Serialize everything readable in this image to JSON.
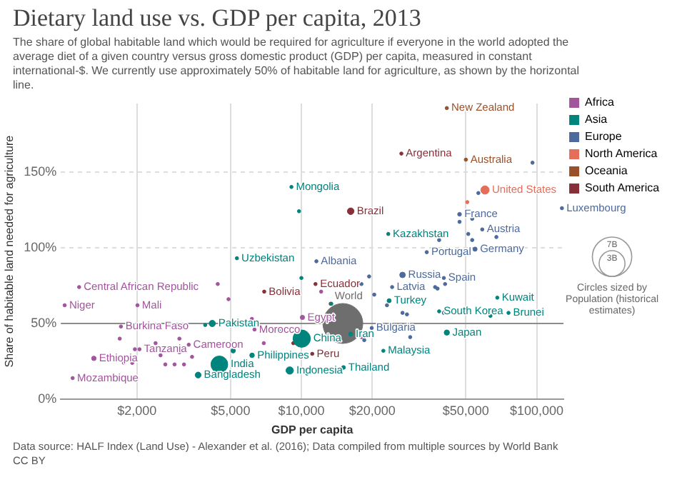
{
  "chart_data": {
    "type": "bubble",
    "title": "Dietary land use vs. GDP per capita, 2013",
    "subtitle": "The share of global habitable land which would be required for agriculture if everyone in the world adopted the average diet of a given country versus gross domestic product (GDP) per capita, measured in constant international-$. We currently use approximately 50% of habitable land for agriculture, as shown by the horizontal line.",
    "xlabel": "GDP per capita",
    "ylabel": "Share of habitable land needed for agriculture",
    "log": "x",
    "xlim": [
      950,
      130000
    ],
    "ylim": [
      0,
      195
    ],
    "xticks": [
      {
        "value": 2000,
        "label": "$2,000"
      },
      {
        "value": 5000,
        "label": "$5,000"
      },
      {
        "value": 10000,
        "label": "$10,000"
      },
      {
        "value": 20000,
        "label": "$20,000"
      },
      {
        "value": 50000,
        "label": "$50,000"
      },
      {
        "value": 100000,
        "label": "$100,000"
      }
    ],
    "yticks": [
      {
        "value": 0,
        "label": "0%"
      },
      {
        "value": 50,
        "label": "50%"
      },
      {
        "value": 100,
        "label": "100%"
      },
      {
        "value": 150,
        "label": "150%"
      }
    ],
    "grid": true,
    "legend": "top right",
    "size_legend": [
      {
        "value": 7,
        "label": "7B"
      },
      {
        "value": 3,
        "label": "3B"
      }
    ],
    "ref_lines": [
      {
        "axis": "y",
        "value": 50,
        "color": "#8c8c8c"
      }
    ],
    "series": [
      {
        "name": "Africa",
        "color": "#a2559c",
        "x": [
          1136,
          986,
          2010,
          1710,
          6320,
          10100,
          3320,
          1312,
          2050,
          1066,
          4410,
          4900,
          1690,
          1960,
          1760,
          1910,
          1490,
          2400,
          2520,
          2640,
          2890,
          3030,
          3030,
          3170,
          3430,
          6160,
          6920,
          12130,
          18000
        ],
        "values": [
          74,
          62,
          62,
          48,
          46,
          54,
          36,
          27,
          33,
          14,
          76,
          66,
          40,
          33,
          24,
          24,
          27,
          37,
          29,
          23,
          23,
          31,
          40,
          23,
          28,
          53,
          37,
          71,
          41
        ],
        "sizes": [
          0.05,
          0.05,
          0.05,
          0.05,
          0.05,
          0.087,
          0.05,
          0.094,
          0.05,
          0.05,
          0.05,
          0.05,
          0.05,
          0.05,
          0.05,
          0.05,
          0.05,
          0.05,
          0.05,
          0.05,
          0.05,
          0.05,
          0.05,
          0.05,
          0.05,
          0.05,
          0.05,
          0.05,
          0.05
        ]
      },
      {
        "name": "Asia",
        "color": "#00847e",
        "x": [
          9070,
          5320,
          4180,
          10030,
          4480,
          3640,
          6170,
          8920,
          23400,
          23600,
          68000,
          38500,
          75900,
          16200,
          41500,
          22300,
          15100,
          9770,
          10000,
          3900,
          5130,
          8040,
          10560,
          13400,
          63600
        ],
        "values": [
          140,
          93,
          50,
          40,
          23,
          16,
          29,
          19,
          109,
          65,
          67,
          58,
          57,
          43,
          44,
          32,
          21,
          124,
          80,
          49,
          32,
          45,
          17,
          63,
          55
        ],
        "sizes": [
          0.05,
          0.05,
          0.18,
          1.36,
          1.28,
          0.157,
          0.098,
          0.25,
          0.05,
          0.076,
          0.05,
          0.05,
          0.05,
          0.077,
          0.127,
          0.05,
          0.067,
          0.05,
          0.05,
          0.05,
          0.09,
          0.05,
          0.05,
          0.05,
          0.05
        ]
      },
      {
        "name": "Europe",
        "color": "#4c6a9c",
        "x": [
          11580,
          47000,
          128000,
          58700,
          34100,
          54700,
          26900,
          40300,
          24300,
          19900,
          96000,
          56500,
          38500,
          47000,
          53200,
          51200,
          53200,
          67400,
          74000,
          19400,
          18000,
          30000,
          37000,
          40800,
          37900,
          20400,
          23100,
          26900,
          28100,
          40400,
          18500,
          29000
        ],
        "values": [
          91,
          122,
          126,
          112,
          97,
          99,
          82,
          80,
          74,
          47,
          156,
          136,
          105,
          117,
          119,
          109,
          105,
          107,
          111,
          81,
          76,
          74,
          74,
          76,
          73,
          69,
          62,
          57,
          56,
          57,
          39,
          41
        ],
        "sizes": [
          0.05,
          0.066,
          0.05,
          0.05,
          0.05,
          0.081,
          0.143,
          0.05,
          0.05,
          0.05,
          0.05,
          0.05,
          0.05,
          0.05,
          0.05,
          0.05,
          0.05,
          0.05,
          0.05,
          0.05,
          0.05,
          0.05,
          0.05,
          0.05,
          0.05,
          0.05,
          0.05,
          0.05,
          0.05,
          0.06,
          0.05,
          0.05
        ]
      },
      {
        "name": "North America",
        "color": "#e56e5a",
        "x": [
          60300,
          50700,
          14800,
          17000
        ],
        "values": [
          138,
          130,
          69,
          67
        ],
        "sizes": [
          0.316,
          0.05,
          0.05,
          0.05
        ]
      },
      {
        "name": "Oceania",
        "color": "#9a5129",
        "x": [
          41500,
          50000
        ],
        "values": [
          192,
          158
        ],
        "sizes": [
          0.05,
          0.05
        ]
      },
      {
        "name": "South America",
        "color": "#883039",
        "x": [
          26600,
          16200,
          6950,
          11480,
          11120,
          13320,
          9240
        ],
        "values": [
          162,
          124,
          71,
          76,
          30,
          63,
          37
        ],
        "sizes": [
          0.05,
          0.2,
          0.05,
          0.05,
          0.05,
          0.05,
          0.05
        ]
      },
      {
        "color": "#6e6e6e",
        "x": [
          15000
        ],
        "values": [
          50
        ],
        "sizes": [
          7.2
        ]
      }
    ],
    "annotations": [
      {
        "text": "Central African Republic",
        "x": 1136,
        "y": 74
      },
      {
        "text": "Niger",
        "x": 986,
        "y": 62
      },
      {
        "text": "Mali",
        "x": 2010,
        "y": 62
      },
      {
        "text": "Burkina Faso",
        "x": 1710,
        "y": 48
      },
      {
        "text": "Morocco",
        "x": 6320,
        "y": 46
      },
      {
        "text": "Egypt",
        "x": 10100,
        "y": 54
      },
      {
        "text": "Cameroon",
        "x": 3320,
        "y": 36
      },
      {
        "text": "Ethiopia",
        "x": 1312,
        "y": 27
      },
      {
        "text": "Tanzania",
        "x": 2050,
        "y": 33
      },
      {
        "text": "Mozambique",
        "x": 1066,
        "y": 14
      },
      {
        "text": "Mongolia",
        "x": 9070,
        "y": 140
      },
      {
        "text": "Uzbekistan",
        "x": 5320,
        "y": 93
      },
      {
        "text": "Pakistan",
        "x": 4180,
        "y": 50
      },
      {
        "text": "China",
        "x": 10030,
        "y": 40
      },
      {
        "text": "India",
        "x": 4480,
        "y": 23
      },
      {
        "text": "Bangladesh",
        "x": 3640,
        "y": 16
      },
      {
        "text": "Philippines",
        "x": 6170,
        "y": 29
      },
      {
        "text": "Indonesia",
        "x": 8920,
        "y": 19
      },
      {
        "text": "Kazakhstan",
        "x": 23400,
        "y": 109
      },
      {
        "text": "Turkey",
        "x": 23600,
        "y": 65
      },
      {
        "text": "Kuwait",
        "x": 68000,
        "y": 67
      },
      {
        "text": "South Korea",
        "x": 38500,
        "y": 58
      },
      {
        "text": "Brunei",
        "x": 75900,
        "y": 57
      },
      {
        "text": "Iran",
        "x": 16200,
        "y": 43
      },
      {
        "text": "Japan",
        "x": 41500,
        "y": 44
      },
      {
        "text": "Malaysia",
        "x": 22300,
        "y": 32
      },
      {
        "text": "Thailand",
        "x": 15100,
        "y": 21
      },
      {
        "text": "Albania",
        "x": 11580,
        "y": 91
      },
      {
        "text": "France",
        "x": 47000,
        "y": 122
      },
      {
        "text": "Luxembourg",
        "x": 128000,
        "y": 126
      },
      {
        "text": "Austria",
        "x": 58700,
        "y": 112
      },
      {
        "text": "Portugal",
        "x": 34100,
        "y": 97
      },
      {
        "text": "Germany",
        "x": 54700,
        "y": 99
      },
      {
        "text": "Russia",
        "x": 26900,
        "y": 82
      },
      {
        "text": "Spain",
        "x": 40300,
        "y": 80
      },
      {
        "text": "Latvia",
        "x": 24300,
        "y": 74
      },
      {
        "text": "Bulgaria",
        "x": 19900,
        "y": 47
      },
      {
        "text": "United States",
        "x": 60300,
        "y": 138
      },
      {
        "text": "New Zealand",
        "x": 41500,
        "y": 192
      },
      {
        "text": "Australia",
        "x": 50000,
        "y": 158
      },
      {
        "text": "Argentina",
        "x": 26600,
        "y": 162
      },
      {
        "text": "Brazil",
        "x": 16200,
        "y": 124
      },
      {
        "text": "Bolivia",
        "x": 6950,
        "y": 71
      },
      {
        "text": "Ecuador",
        "x": 11480,
        "y": 76
      },
      {
        "text": "Peru",
        "x": 11120,
        "y": 30
      },
      {
        "text": "World",
        "x": 15000,
        "y": 50
      },
      "Circles sized by Population (historical estimates)",
      "Data source: HALF Index (Land Use) - Alexander et al. (2016); Data compiled from multiple sources by World Bank",
      "CC BY"
    ]
  }
}
